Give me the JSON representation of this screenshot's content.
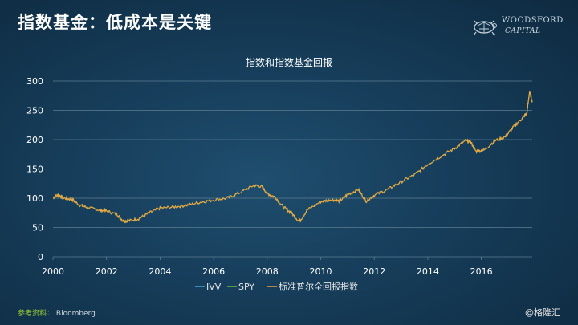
{
  "slide": {
    "title": "指数基金：低成本是关键",
    "source_label": "参考资料：",
    "source_value": "Bloomberg",
    "watermark": "@格隆汇"
  },
  "logo": {
    "line1": "WOODSFORD",
    "line2": "CAPITAL",
    "icon": "turtle-logo-icon"
  },
  "chart_data": {
    "type": "line",
    "title": "指数和指数基金回报",
    "xlabel": "",
    "ylabel": "",
    "xlim": [
      2000,
      2017.9
    ],
    "ylim": [
      0,
      300
    ],
    "x_ticks": [
      "2000",
      "2002",
      "2004",
      "2006",
      "2008",
      "2010",
      "2012",
      "2014",
      "2016"
    ],
    "y_ticks": [
      "0",
      "50",
      "100",
      "150",
      "200",
      "250",
      "300"
    ],
    "grid": "horizontal",
    "legend_position": "bottom",
    "colors": {
      "IVV": "#4a9fd4",
      "SPY": "#6dbb45",
      "index": "#e8a540",
      "grid": "#5d7d93",
      "axis_text": "#ffffff"
    },
    "series": [
      {
        "name": "IVV",
        "values": []
      },
      {
        "name": "SPY",
        "values": []
      },
      {
        "name": "标准普尔全回报指数",
        "x": [
          2000.0,
          2000.2,
          2000.4,
          2000.7,
          2001.0,
          2001.3,
          2001.7,
          2002.0,
          2002.4,
          2002.6,
          2002.8,
          2003.2,
          2003.6,
          2004.0,
          2004.5,
          2005.0,
          2005.5,
          2006.0,
          2006.5,
          2007.0,
          2007.5,
          2007.8,
          2008.0,
          2008.3,
          2008.6,
          2008.9,
          2009.2,
          2009.5,
          2010.0,
          2010.4,
          2010.7,
          2011.0,
          2011.4,
          2011.7,
          2012.0,
          2012.5,
          2013.0,
          2013.5,
          2014.0,
          2014.5,
          2015.0,
          2015.4,
          2015.6,
          2015.8,
          2016.1,
          2016.5,
          2016.9,
          2017.2,
          2017.5,
          2017.7,
          2017.8,
          2017.9
        ],
        "values": [
          101,
          106,
          100,
          98,
          88,
          84,
          80,
          78,
          72,
          62,
          61,
          65,
          75,
          83,
          85,
          88,
          93,
          97,
          100,
          110,
          122,
          120,
          108,
          102,
          85,
          75,
          60,
          80,
          94,
          98,
          95,
          106,
          115,
          95,
          105,
          115,
          128,
          140,
          158,
          172,
          185,
          198,
          196,
          180,
          182,
          198,
          205,
          222,
          235,
          245,
          282,
          265
        ]
      }
    ]
  }
}
